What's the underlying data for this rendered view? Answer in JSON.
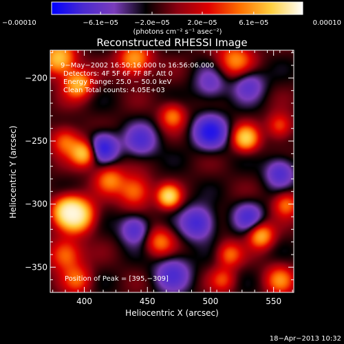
{
  "chart_data": {
    "type": "heatmap",
    "title": "Reconstructed RHESSI Image",
    "xlabel": "Heliocentric X (arcsec)",
    "ylabel": "Heliocentric Y (arcsec)",
    "xlim": [
      373,
      566
    ],
    "ylim": [
      -370,
      -178
    ],
    "x_ticks": [
      400,
      450,
      500,
      550
    ],
    "x_tick_labels": [
      "400",
      "450",
      "500",
      "550"
    ],
    "y_ticks": [
      -200,
      -250,
      -300,
      -350
    ],
    "y_tick_labels": [
      "−200",
      "−250",
      "−300",
      "−350"
    ],
    "colorbar": {
      "min": -0.0001,
      "max": 0.0001,
      "ticks": [
        -0.0001,
        -6.1e-05,
        -2e-05,
        2e-05,
        6.1e-05,
        0.0001
      ],
      "tick_labels": [
        "−0.00010",
        "−6.1e−05",
        "−2.0e−05",
        "2.0e−05",
        "6.1e−05",
        "0.00010"
      ],
      "units_label": "(photons cm⁻² s⁻¹ asec⁻²)",
      "colors": [
        "#0000ff",
        "#4a2ad0",
        "#7a3cbb",
        "#000000",
        "#8a0010",
        "#e00000",
        "#ff7000",
        "#ffd040",
        "#ffffff"
      ]
    },
    "annotations": [
      "9−May−2002 16:50:16.000 to 16:56:06.000",
      "Detectors: 4F 5F 6F 7F 8F, Att 0",
      "Energy Range: 25.0 − 50.0 keV",
      "Clean     Total counts: 4.05E+03"
    ],
    "peak_label": "Position of Peak = [395,−309]",
    "peak": [
      395,
      -309
    ],
    "sources": [
      {
        "x": 395,
        "y": -309,
        "v": 1.0,
        "s": 9
      },
      {
        "x": 386,
        "y": -305,
        "v": 0.8,
        "s": 8
      },
      {
        "x": 380,
        "y": -185,
        "v": 0.85,
        "s": 9
      },
      {
        "x": 395,
        "y": -205,
        "v": 0.75,
        "s": 8
      },
      {
        "x": 400,
        "y": -260,
        "v": 0.85,
        "s": 7
      },
      {
        "x": 385,
        "y": -250,
        "v": 0.55,
        "s": 8
      },
      {
        "x": 467,
        "y": -294,
        "v": 0.95,
        "s": 6
      },
      {
        "x": 440,
        "y": -186,
        "v": 0.7,
        "s": 9
      },
      {
        "x": 470,
        "y": -230,
        "v": 0.55,
        "s": 7
      },
      {
        "x": 520,
        "y": -186,
        "v": 0.6,
        "s": 10
      },
      {
        "x": 528,
        "y": -248,
        "v": 0.85,
        "s": 7
      },
      {
        "x": 555,
        "y": -238,
        "v": 0.5,
        "s": 7
      },
      {
        "x": 440,
        "y": -290,
        "v": 0.6,
        "s": 9
      },
      {
        "x": 420,
        "y": -280,
        "v": 0.55,
        "s": 8
      },
      {
        "x": 460,
        "y": -330,
        "v": 0.55,
        "s": 8
      },
      {
        "x": 385,
        "y": -340,
        "v": 0.6,
        "s": 9
      },
      {
        "x": 395,
        "y": -360,
        "v": 0.45,
        "s": 8
      },
      {
        "x": 540,
        "y": -325,
        "v": 0.75,
        "s": 7
      },
      {
        "x": 560,
        "y": -300,
        "v": 0.55,
        "s": 7
      },
      {
        "x": 515,
        "y": -340,
        "v": 0.5,
        "s": 7
      },
      {
        "x": 555,
        "y": -360,
        "v": 0.55,
        "s": 8
      },
      {
        "x": 510,
        "y": -360,
        "v": 0.4,
        "s": 7
      },
      {
        "x": 415,
        "y": -255,
        "v": -0.8,
        "s": 8
      },
      {
        "x": 500,
        "y": -243,
        "v": -0.85,
        "s": 9
      },
      {
        "x": 490,
        "y": -315,
        "v": -0.7,
        "s": 9
      },
      {
        "x": 440,
        "y": -320,
        "v": -0.6,
        "s": 8
      },
      {
        "x": 445,
        "y": -250,
        "v": -0.55,
        "s": 9
      },
      {
        "x": 530,
        "y": -310,
        "v": -0.55,
        "s": 8
      },
      {
        "x": 530,
        "y": -205,
        "v": -0.5,
        "s": 9
      },
      {
        "x": 555,
        "y": -275,
        "v": -0.6,
        "s": 8
      },
      {
        "x": 470,
        "y": -355,
        "v": -0.55,
        "s": 10
      },
      {
        "x": 500,
        "y": -205,
        "v": -0.4,
        "s": 9
      }
    ]
  },
  "footer": {
    "timestamp": "18−Apr−2013 10:32"
  }
}
